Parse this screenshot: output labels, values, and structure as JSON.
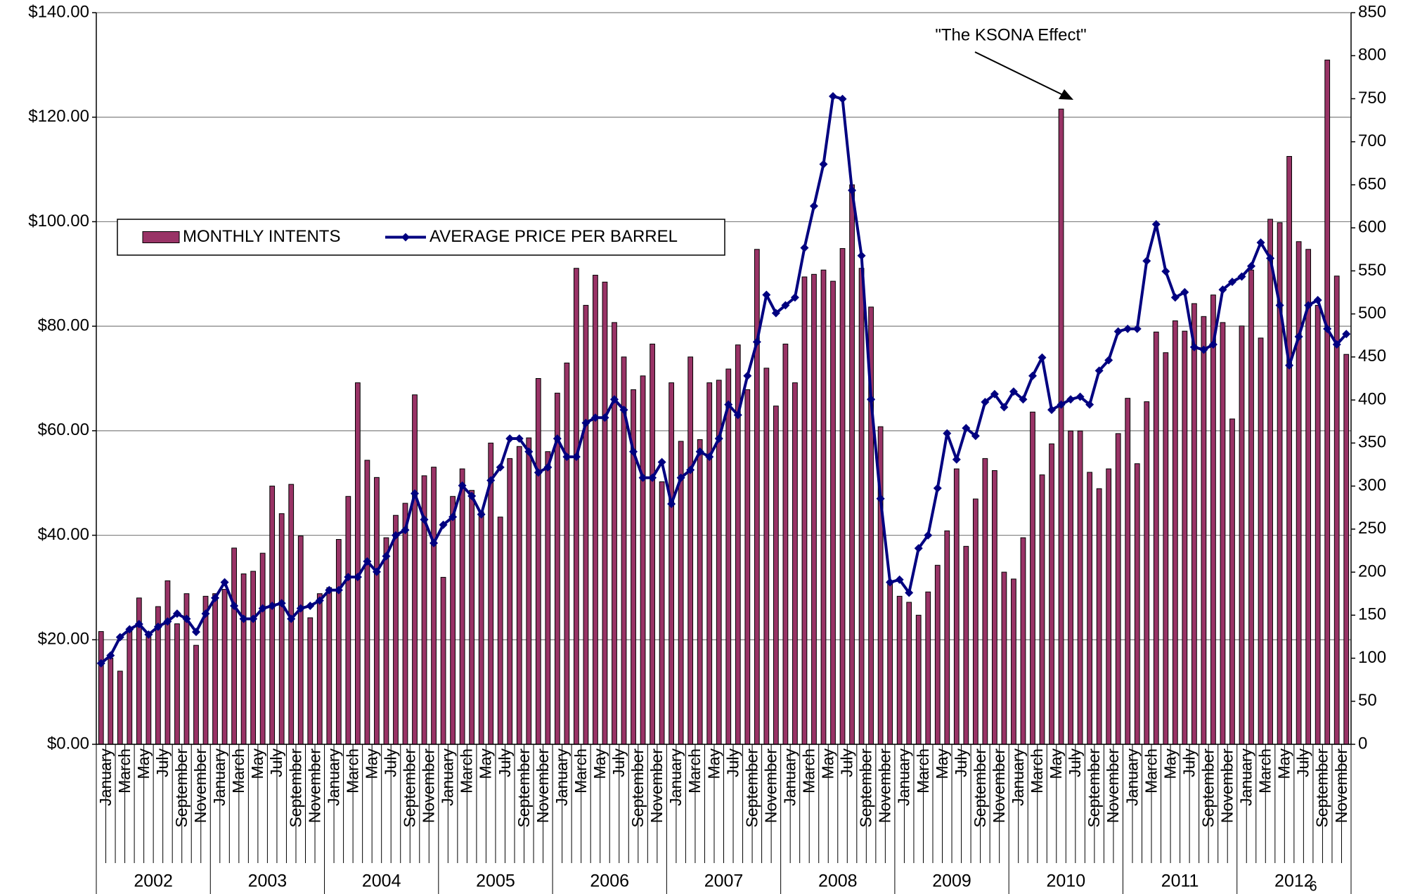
{
  "chart_data": {
    "type": "combo",
    "annotation": "\"The KSONA Effect\"",
    "page_number": "6",
    "categories": [
      "January",
      null,
      "March",
      null,
      "May",
      null,
      "July",
      null,
      "September",
      null,
      "November",
      null,
      "January",
      null,
      "March",
      null,
      "May",
      null,
      "July",
      null,
      "September",
      null,
      "November",
      null,
      "January",
      null,
      "March",
      null,
      "May",
      null,
      "July",
      null,
      "September",
      null,
      "November",
      null,
      "January",
      null,
      "March",
      null,
      "May",
      null,
      "July",
      null,
      "September",
      null,
      "November",
      null,
      "January",
      null,
      "March",
      null,
      "May",
      null,
      "July",
      null,
      "September",
      null,
      "November",
      null,
      "January",
      null,
      "March",
      null,
      "May",
      null,
      "July",
      null,
      "September",
      null,
      "November",
      null,
      "January",
      null,
      "March",
      null,
      "May",
      null,
      "July",
      null,
      "September",
      null,
      "November",
      null,
      "January",
      null,
      "March",
      null,
      "May",
      null,
      "July",
      null,
      "September",
      null,
      "November",
      null,
      "January",
      null,
      "March",
      null,
      "May",
      null,
      "July",
      null,
      "September",
      null,
      "November",
      null,
      "January",
      null,
      "March",
      null,
      "May",
      null,
      "July",
      null,
      "September",
      null,
      "November",
      null,
      "January",
      null,
      "March",
      null,
      "May",
      null,
      "July",
      null,
      "September",
      null,
      "November",
      null
    ],
    "years": [
      "2002",
      "2003",
      "2004",
      "2005",
      "2006",
      "2007",
      "2008",
      "2009",
      "2010",
      "2011",
      "2012"
    ],
    "ylim": [
      0,
      140
    ],
    "yticks": [
      {
        "value": 0,
        "label": "$0.00"
      },
      {
        "value": 20,
        "label": "$20.00"
      },
      {
        "value": 40,
        "label": "$40.00"
      },
      {
        "value": 60,
        "label": "$60.00"
      },
      {
        "value": 80,
        "label": "$80.00"
      },
      {
        "value": 100,
        "label": "$100.00"
      },
      {
        "value": 120,
        "label": "$120.00"
      },
      {
        "value": 140,
        "label": "$140.00"
      }
    ],
    "y2lim": [
      0,
      850
    ],
    "y2ticks": [
      0,
      50,
      100,
      150,
      200,
      250,
      300,
      350,
      400,
      450,
      500,
      550,
      600,
      650,
      700,
      750,
      800,
      850
    ],
    "grid": true,
    "series": [
      {
        "name": "MONTHLY INTENTS",
        "type": "bar",
        "axis": "y2",
        "color": "#993366",
        "values": [
          131,
          100,
          85,
          135,
          170,
          125,
          160,
          190,
          140,
          175,
          115,
          172,
          175,
          180,
          228,
          198,
          201,
          222,
          300,
          268,
          302,
          242,
          147,
          175,
          182,
          238,
          288,
          420,
          330,
          310,
          240,
          266,
          280,
          406,
          312,
          322,
          194,
          288,
          320,
          295,
          270,
          350,
          264,
          332,
          346,
          356,
          425,
          340,
          408,
          443,
          553,
          510,
          545,
          537,
          490,
          450,
          412,
          428,
          465,
          305,
          420,
          352,
          450,
          354,
          420,
          423,
          436,
          464,
          412,
          575,
          437,
          393,
          465,
          420,
          543,
          546,
          551,
          538,
          576,
          650,
          553,
          508,
          369,
          190,
          172,
          165,
          150,
          177,
          208,
          248,
          320,
          230,
          285,
          332,
          318,
          200,
          192,
          240,
          386,
          313,
          349,
          738,
          364,
          364,
          316,
          297,
          320,
          361,
          402,
          326,
          398,
          479,
          455,
          492,
          480,
          512,
          497,
          522,
          490,
          378,
          486,
          551,
          472,
          610,
          606,
          683,
          584,
          575,
          510,
          795,
          544,
          453
        ]
      },
      {
        "name": "AVERAGE PRICE PER BARREL",
        "type": "line",
        "color": "#000080",
        "values": [
          15.5,
          17,
          20.5,
          22,
          23,
          21,
          22.5,
          23.5,
          25,
          24,
          21.5,
          25,
          28,
          31,
          26.5,
          24,
          24,
          26,
          26.5,
          27,
          24,
          26,
          26.5,
          27.5,
          29.5,
          29.5,
          32,
          32,
          35,
          33,
          36,
          40,
          41,
          48,
          43,
          38.5,
          42,
          43.5,
          49.5,
          47.5,
          44,
          50.5,
          53,
          58.5,
          58.5,
          56,
          52,
          53,
          58.5,
          55,
          55,
          61.5,
          62.5,
          62.5,
          66,
          64,
          56,
          51,
          51,
          54,
          46,
          51,
          52.5,
          56,
          55,
          58.5,
          65,
          63,
          70.5,
          77,
          86,
          82.5,
          84,
          85.5,
          95,
          103,
          111,
          124,
          123.5,
          106,
          93.5,
          66,
          47,
          31,
          31.5,
          29,
          37.5,
          40,
          49,
          59.5,
          54.5,
          60.5,
          59,
          65.5,
          67,
          64.5,
          67.5,
          66,
          70.5,
          74,
          64,
          65,
          66,
          66.5,
          65,
          71.5,
          73.5,
          79,
          79.5,
          79.5,
          92.5,
          99.5,
          90.5,
          85.5,
          86.5,
          76,
          75.5,
          76.5,
          87,
          88.5,
          89.5,
          91.5,
          96,
          93,
          84,
          72.5,
          78,
          84,
          85,
          79.5,
          76.5,
          78.5
        ]
      }
    ]
  }
}
